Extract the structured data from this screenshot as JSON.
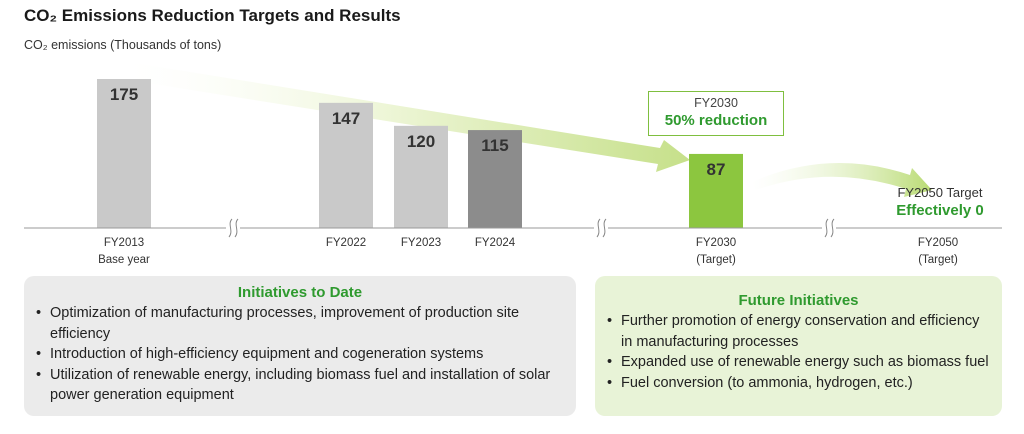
{
  "title": "CO₂ Emissions Reduction Targets and Results",
  "chart_data": {
    "type": "bar",
    "title": "CO₂ Emissions Reduction Targets and Results",
    "ylabel": "CO₂ emissions (Thousands of tons)",
    "xlabel": "",
    "ylim": [
      0,
      175
    ],
    "grid": false,
    "categories": [
      {
        "label": "FY2013",
        "sub": "Base year",
        "value": 175,
        "color": "#c9c9c9"
      },
      {
        "label": "FY2022",
        "sub": "",
        "value": 147,
        "color": "#c9c9c9"
      },
      {
        "label": "FY2023",
        "sub": "",
        "value": 120,
        "color": "#c9c9c9"
      },
      {
        "label": "FY2024",
        "sub": "",
        "value": 115,
        "color": "#8c8c8c"
      },
      {
        "label": "FY2030",
        "sub": "(Target)",
        "value": 87,
        "color": "#8cc63f"
      },
      {
        "label": "FY2050",
        "sub": "(Target)",
        "value": 0,
        "color": "#8cc63f"
      }
    ],
    "annotations": {
      "fy2030": {
        "line1": "FY2030",
        "line2": "50% reduction"
      },
      "fy2050": {
        "line1": "FY2050 Target",
        "line2": "Effectively 0"
      }
    }
  },
  "initiatives_to_date": {
    "heading": "Initiatives to Date",
    "items": [
      "Optimization of manufacturing processes, improvement of production site efficiency",
      "Introduction of high-efficiency equipment and cogeneration systems",
      "Utilization of renewable energy, including biomass fuel and installation of solar power generation equipment"
    ]
  },
  "future_initiatives": {
    "heading": "Future Initiatives",
    "items": [
      "Further promotion of energy conservation and efficiency in manufacturing processes",
      "Expanded use of renewable energy such as biomass fuel",
      "Fuel conversion (to ammonia, hydrogen, etc.)"
    ]
  }
}
